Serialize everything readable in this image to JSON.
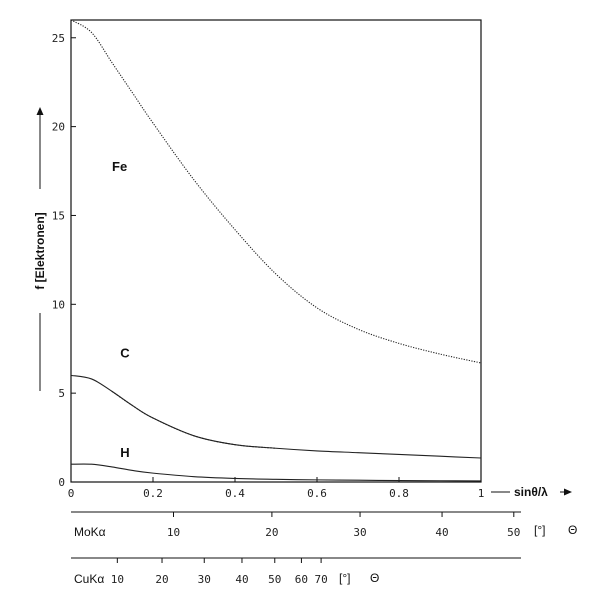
{
  "chart_data": {
    "type": "line",
    "ylabel": "f [Elektronen]",
    "xlabel": "sinθ/λ",
    "xlim": [
      0,
      1
    ],
    "ylim": [
      0,
      26
    ],
    "x_ticks": [
      "0",
      "0.2",
      "0.4",
      "0.6",
      "0.8",
      "1"
    ],
    "y_ticks": [
      "0",
      "5",
      "10",
      "15",
      "20",
      "25"
    ],
    "series": [
      {
        "name": "Fe",
        "style": "dotted",
        "x": [
          0,
          0.05,
          0.1,
          0.15,
          0.2,
          0.3,
          0.4,
          0.5,
          0.6,
          0.7,
          0.8,
          0.9,
          1.0
        ],
        "y": [
          26.0,
          25.3,
          23.6,
          21.9,
          20.2,
          17.0,
          14.2,
          11.7,
          9.8,
          8.6,
          7.8,
          7.2,
          6.7
        ]
      },
      {
        "name": "C",
        "style": "mixed",
        "x": [
          0,
          0.05,
          0.1,
          0.15,
          0.2,
          0.3,
          0.4,
          0.5,
          0.6,
          0.7,
          0.8,
          0.9,
          1.0
        ],
        "y": [
          6.0,
          5.8,
          5.1,
          4.3,
          3.6,
          2.6,
          2.1,
          1.9,
          1.75,
          1.65,
          1.55,
          1.45,
          1.35
        ]
      },
      {
        "name": "H",
        "style": "solid",
        "x": [
          0,
          0.05,
          0.1,
          0.15,
          0.2,
          0.3,
          0.4,
          0.5,
          0.6,
          0.7,
          0.8,
          0.9,
          1.0
        ],
        "y": [
          1.0,
          1.0,
          0.85,
          0.65,
          0.5,
          0.3,
          0.2,
          0.15,
          0.12,
          0.1,
          0.08,
          0.07,
          0.06
        ]
      }
    ],
    "secondary_scales": [
      {
        "label": "MoKα",
        "unit": "[°]",
        "symbol": "Θ",
        "ticks": [
          {
            "label": "10",
            "value": 0.25
          },
          {
            "label": "20",
            "value": 0.49
          },
          {
            "label": "30",
            "value": 0.705
          },
          {
            "label": "40",
            "value": 0.905
          },
          {
            "label": "50",
            "value": 1.08
          }
        ]
      },
      {
        "label": "CuKα",
        "unit": "[°]",
        "symbol": "Θ",
        "ticks": [
          {
            "label": "10",
            "value": 0.113
          },
          {
            "label": "20",
            "value": 0.222
          },
          {
            "label": "30",
            "value": 0.325
          },
          {
            "label": "40",
            "value": 0.417
          },
          {
            "label": "50",
            "value": 0.497
          },
          {
            "label": "60",
            "value": 0.562
          },
          {
            "label": "70",
            "value": 0.61
          }
        ]
      }
    ]
  }
}
